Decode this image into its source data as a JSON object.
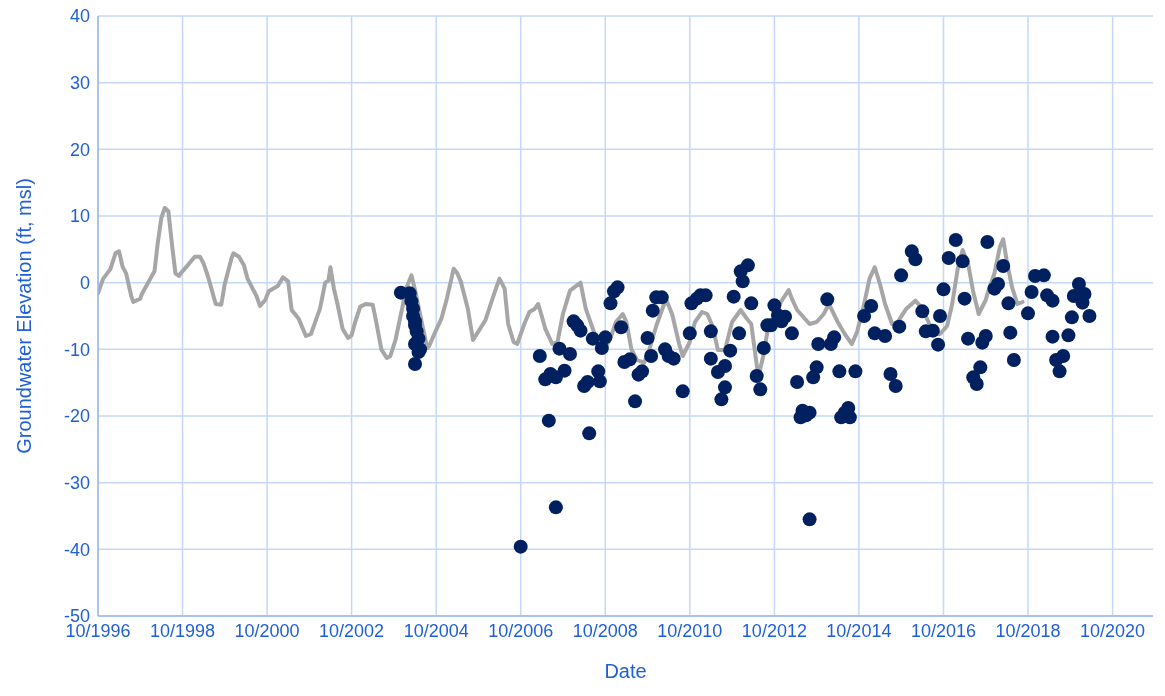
{
  "chart_data": {
    "type": "line",
    "xlabel": "Date",
    "ylabel": "Groundwater Elevation (ft, msl)",
    "xlim": [
      "1996-10-01",
      "2021-09-15"
    ],
    "xticks": [
      {
        "value": "1996-10-01",
        "label": "10/1996"
      },
      {
        "value": "1998-10-01",
        "label": "10/1998"
      },
      {
        "value": "2000-10-01",
        "label": "10/2000"
      },
      {
        "value": "2002-10-01",
        "label": "10/2002"
      },
      {
        "value": "2004-10-01",
        "label": "10/2004"
      },
      {
        "value": "2006-10-01",
        "label": "10/2006"
      },
      {
        "value": "2008-10-01",
        "label": "10/2008"
      },
      {
        "value": "2010-10-01",
        "label": "10/2010"
      },
      {
        "value": "2012-10-01",
        "label": "10/2012"
      },
      {
        "value": "2014-10-01",
        "label": "10/2014"
      },
      {
        "value": "2016-10-01",
        "label": "10/2016"
      },
      {
        "value": "2018-10-01",
        "label": "10/2018"
      },
      {
        "value": "2020-10-01",
        "label": "10/2020"
      }
    ],
    "ylim": [
      -50,
      40
    ],
    "yticks": [
      -50,
      -40,
      -30,
      -20,
      -10,
      0,
      10,
      20,
      30,
      40
    ],
    "grid": true,
    "series": [
      {
        "type": "line",
        "color": "#a6a6a6",
        "x": [
          "1996-10-01",
          "1996-11-15",
          "1997-01-15",
          "1997-03-01",
          "1997-04-01",
          "1997-05-01",
          "1997-06-01",
          "1997-07-15",
          "1997-08-01",
          "1997-10-01",
          "1997-10-15",
          "1997-12-15",
          "1998-02-01",
          "1998-03-01",
          "1998-04-01",
          "1998-05-01",
          "1998-06-01",
          "1998-07-01",
          "1998-08-01",
          "1998-09-01",
          "1998-09-15",
          "1998-11-15",
          "1999-01-15",
          "1999-03-01",
          "1999-04-01",
          "1999-05-15",
          "1999-07-15",
          "1999-09-01",
          "1999-10-01",
          "1999-12-01",
          "1999-12-15",
          "2000-02-01",
          "2000-03-15",
          "2000-04-15",
          "2000-07-01",
          "2000-08-01",
          "2000-09-15",
          "2000-10-15",
          "2001-01-01",
          "2001-02-15",
          "2001-04-01",
          "2001-05-01",
          "2001-07-01",
          "2001-09-01",
          "2001-10-15",
          "2001-12-01",
          "2002-01-01",
          "2002-02-15",
          "2002-03-15",
          "2002-04-01",
          "2002-05-01",
          "2002-06-01",
          "2002-07-15",
          "2002-09-01",
          "2002-10-01",
          "2002-11-01",
          "2002-12-15",
          "2003-02-01",
          "2003-04-01",
          "2003-05-01",
          "2003-06-15",
          "2003-08-01",
          "2003-09-01",
          "2003-10-15",
          "2003-12-15",
          "2004-01-15",
          "2004-03-01",
          "2004-04-01",
          "2004-06-01",
          "2004-07-15",
          "2004-08-01",
          "2004-09-15",
          "2004-11-15",
          "2005-01-01",
          "2005-03-01",
          "2005-04-01",
          "2005-05-01",
          "2005-07-01",
          "2005-08-15",
          "2005-10-01",
          "2005-12-01",
          "2006-01-15",
          "2006-03-01",
          "2006-04-01",
          "2006-05-15",
          "2006-06-15",
          "2006-08-01",
          "2006-09-01",
          "2006-11-01",
          "2006-12-15",
          "2007-02-01",
          "2007-03-01",
          "2007-04-01",
          "2007-05-01",
          "2007-07-01",
          "2007-08-15",
          "2007-10-01",
          "2007-12-01",
          "2008-03-01",
          "2008-04-15",
          "2008-07-01",
          "2008-08-15",
          "2008-09-15",
          "2008-11-15",
          "2009-01-01",
          "2009-03-01",
          "2009-04-01",
          "2009-05-15",
          "2009-07-01",
          "2009-09-01",
          "2009-10-15",
          "2009-12-15",
          "2010-02-15",
          "2010-03-15",
          "2010-05-01",
          "2010-07-01",
          "2010-08-01",
          "2010-10-01",
          "2010-11-15",
          "2011-01-15",
          "2011-03-01",
          "2011-04-15",
          "2011-06-01",
          "2011-08-01",
          "2011-10-01",
          "2011-12-15",
          "2012-02-01",
          "2012-03-15",
          "2012-05-01",
          "2012-05-15",
          "2012-07-01",
          "2012-08-01",
          "2012-10-01",
          "2012-11-15",
          "2013-02-01",
          "2013-03-01",
          "2013-04-15",
          "2013-07-01",
          "2013-08-01",
          "2013-10-01",
          "2013-12-01",
          "2014-01-15",
          "2014-04-01",
          "2014-06-01",
          "2014-08-01",
          "2014-09-15",
          "2014-11-15",
          "2015-01-01",
          "2015-02-15",
          "2015-04-01",
          "2015-05-15",
          "2015-07-15",
          "2015-09-01",
          "2015-11-15",
          "2016-02-01",
          "2016-04-01",
          "2016-06-01",
          "2016-07-15",
          "2016-09-01",
          "2016-11-01",
          "2016-12-15",
          "2017-02-01",
          "2017-03-15",
          "2017-05-01",
          "2017-06-15",
          "2017-08-01",
          "2017-10-01",
          "2017-10-15",
          "2017-12-15",
          "2018-02-01",
          "2018-03-01",
          "2018-04-01",
          "2018-05-15",
          "2018-07-01",
          "2018-08-15"
        ],
        "values": [
          -1.6,
          0.6,
          2,
          4.4,
          4.7,
          2.4,
          1.4,
          -2,
          -2.9,
          -2.4,
          -1.7,
          0.2,
          1.7,
          5.9,
          9.7,
          11.2,
          10.7,
          5.9,
          1.4,
          1,
          1.4,
          2.6,
          3.9,
          3.9,
          2.9,
          0.6,
          -3.2,
          -3.3,
          -0.2,
          3.8,
          4.4,
          3.9,
          2.6,
          0.6,
          -2,
          -3.5,
          -2.6,
          -1.3,
          -0.5,
          0.8,
          0.2,
          -4.1,
          -5.4,
          -8,
          -7.7,
          -5.4,
          -3.9,
          0,
          0.3,
          2.3,
          -0.9,
          -3.2,
          -6.9,
          -8.3,
          -7.9,
          -5.9,
          -3.6,
          -3.2,
          -3.3,
          -5.8,
          -10,
          -11.3,
          -11,
          -8.6,
          -3.6,
          -0.9,
          1.1,
          -1.1,
          -6.2,
          -9.8,
          -9.5,
          -7.7,
          -5.4,
          -2.4,
          2.1,
          1.4,
          0.2,
          -3.9,
          -8.6,
          -7.3,
          -5.6,
          -3.2,
          -0.9,
          0.6,
          -0.9,
          -6.2,
          -8.9,
          -9.2,
          -6.2,
          -4.4,
          -3.9,
          -3.2,
          -5,
          -6.9,
          -9.2,
          -8.9,
          -4.7,
          -1.2,
          0,
          -3.9,
          -7.7,
          -10,
          -10.3,
          -8.3,
          -5.9,
          -4.7,
          -5.9,
          -10,
          -11.6,
          -12,
          -10.1,
          -6.5,
          -3.5,
          -2.7,
          -4.7,
          -9.2,
          -11,
          -8.9,
          -5.9,
          -4.4,
          -4.7,
          -6.5,
          -10.1,
          -10.1,
          -5.9,
          -4.1,
          -5.3,
          -6.2,
          -12.3,
          -14.1,
          -10.7,
          -7.4,
          -5,
          -3.2,
          -1.1,
          -2.4,
          -4.1,
          -5.6,
          -6.2,
          -5.9,
          -4.7,
          -3.2,
          -5.9,
          -7.7,
          -9.2,
          -7.4,
          -3.2,
          0.6,
          2.3,
          -0.2,
          -3.2,
          -6.2,
          -5.9,
          -3.9,
          -2.7,
          -3.9,
          -6.2,
          -7.7,
          -7.7,
          -6.5,
          -3.2,
          2.1,
          4.9,
          2.9,
          -1.4,
          -4.7,
          -2.6,
          -1.7,
          1.4,
          5.4,
          6.5,
          3.2,
          -0.6,
          -3.2,
          -2.9
        ]
      },
      {
        "type": "scatter",
        "color": "#002060",
        "marker": "circle",
        "x": [
          "2003-12-01",
          "2004-02-15",
          "2004-03-01",
          "2004-03-15",
          "2004-03-15",
          "2004-04-01",
          "2004-04-01",
          "2004-04-15",
          "2004-05-01",
          "2004-04-01",
          "2004-05-01",
          "2004-05-15",
          "2004-04-01",
          "2006-10-01",
          "2007-03-15",
          "2007-05-01",
          "2007-06-01",
          "2007-06-15",
          "2007-08-01",
          "2007-08-01",
          "2007-09-01",
          "2007-10-15",
          "2007-12-01",
          "2008-01-01",
          "2008-02-01",
          "2008-03-01",
          "2008-04-01",
          "2008-05-01",
          "2008-05-15",
          "2008-06-15",
          "2008-08-01",
          "2008-08-15",
          "2008-09-01",
          "2008-10-01",
          "2008-11-15",
          "2008-12-15",
          "2009-01-15",
          "2009-02-15",
          "2009-03-15",
          "2009-05-01",
          "2009-06-15",
          "2009-07-15",
          "2009-08-15",
          "2009-10-01",
          "2009-11-01",
          "2009-11-15",
          "2009-12-15",
          "2010-02-01",
          "2010-03-01",
          "2010-04-01",
          "2010-05-15",
          "2010-08-01",
          "2010-10-01",
          "2010-10-15",
          "2010-12-01",
          "2011-01-01",
          "2011-02-15",
          "2011-04-01",
          "2011-04-01",
          "2011-06-01",
          "2011-07-01",
          "2011-08-01",
          "2011-08-01",
          "2011-09-15",
          "2011-10-15",
          "2011-12-01",
          "2011-12-15",
          "2012-01-01",
          "2012-02-15",
          "2012-03-15",
          "2012-05-01",
          "2012-06-01",
          "2012-07-01",
          "2012-08-01",
          "2012-09-01",
          "2012-10-01",
          "2012-11-01",
          "2012-12-01",
          "2013-01-01",
          "2013-03-01",
          "2013-04-15",
          "2013-05-15",
          "2013-06-01",
          "2013-07-01",
          "2013-08-01",
          "2013-08-01",
          "2013-09-01",
          "2013-10-01",
          "2013-10-15",
          "2014-01-01",
          "2014-02-01",
          "2014-03-01",
          "2014-04-15",
          "2014-05-01",
          "2014-06-01",
          "2014-07-01",
          "2014-07-15",
          "2014-09-01",
          "2014-11-15",
          "2015-01-15",
          "2015-02-15",
          "2015-05-15",
          "2015-07-01",
          "2015-08-15",
          "2015-09-15",
          "2015-10-01",
          "2016-01-01",
          "2016-02-01",
          "2016-04-01",
          "2016-05-01",
          "2016-07-01",
          "2016-08-15",
          "2016-09-01",
          "2016-10-01",
          "2016-11-15",
          "2017-01-15",
          "2017-03-15",
          "2017-04-01",
          "2017-05-01",
          "2017-06-15",
          "2017-07-15",
          "2017-08-15",
          "2017-09-01",
          "2017-10-01",
          "2017-10-15",
          "2017-12-15",
          "2018-01-15",
          "2018-03-01",
          "2018-04-15",
          "2018-05-01",
          "2018-06-01",
          "2018-10-01",
          "2018-11-01",
          "2018-12-01",
          "2019-02-15",
          "2019-03-15",
          "2019-05-01",
          "2019-05-01",
          "2019-06-01",
          "2019-07-01",
          "2019-08-01",
          "2019-09-15",
          "2019-10-15",
          "2019-11-01",
          "2019-12-15",
          "2020-01-15",
          "2020-02-01",
          "2020-03-15"
        ],
        "values": [
          -1.5,
          -1.6,
          -2.8,
          -3.9,
          -5,
          -5.8,
          -6.4,
          -7.3,
          -8.4,
          -9.2,
          -10.4,
          -10,
          -12.2,
          -39.6,
          -11,
          -14.5,
          -20.7,
          -13.7,
          -33.7,
          -14.2,
          -9.9,
          -13.2,
          -10.7,
          -5.8,
          -6.4,
          -7.2,
          -15.5,
          -14.9,
          -22.6,
          -8.4,
          -13.3,
          -14.8,
          -9.8,
          -8.2,
          -3.1,
          -1.3,
          -0.7,
          -6.7,
          -11.9,
          -11.5,
          -17.8,
          -13.8,
          -13.3,
          -8.3,
          -11,
          -4.2,
          -2.2,
          -2.2,
          -10,
          -11,
          -11.4,
          -16.3,
          -7.6,
          -3.1,
          -2.4,
          -1.9,
          -1.9,
          -7.3,
          -11.4,
          -13.4,
          -17.5,
          -12.5,
          -15.7,
          -10.2,
          -2.1,
          -7.6,
          1.7,
          0.2,
          2.6,
          -3.1,
          -14,
          -16,
          -9.8,
          -6.4,
          -6.4,
          -3.4,
          -4.9,
          -5.8,
          -5.1,
          -7.6,
          -14.9,
          -20.2,
          -19.2,
          -19.9,
          -19.5,
          -35.5,
          -14.2,
          -12.7,
          -9.2,
          -2.5,
          -9.2,
          -8.2,
          -13.3,
          -20.2,
          -19.5,
          -18.8,
          -20.2,
          -13.3,
          -5,
          -3.5,
          -7.6,
          -8,
          -13.7,
          -15.5,
          -6.6,
          1.1,
          4.7,
          3.5,
          -4.3,
          -7.3,
          -7.2,
          -9.3,
          -5,
          -1,
          3.7,
          6.4,
          3.2,
          -2.4,
          -8.4,
          -14.2,
          -15.2,
          -12.7,
          -9,
          -8,
          6.1,
          -0.9,
          -0.2,
          2.5,
          -3.1,
          -7.5,
          -11.6,
          -4.6,
          -1.4,
          1,
          1.1,
          -1.9,
          -2.7,
          -8.1,
          -11.6,
          -13.3,
          -11,
          -7.9,
          -5.2,
          -2,
          -0.2,
          -3,
          -1.7,
          -5
        ]
      }
    ]
  }
}
